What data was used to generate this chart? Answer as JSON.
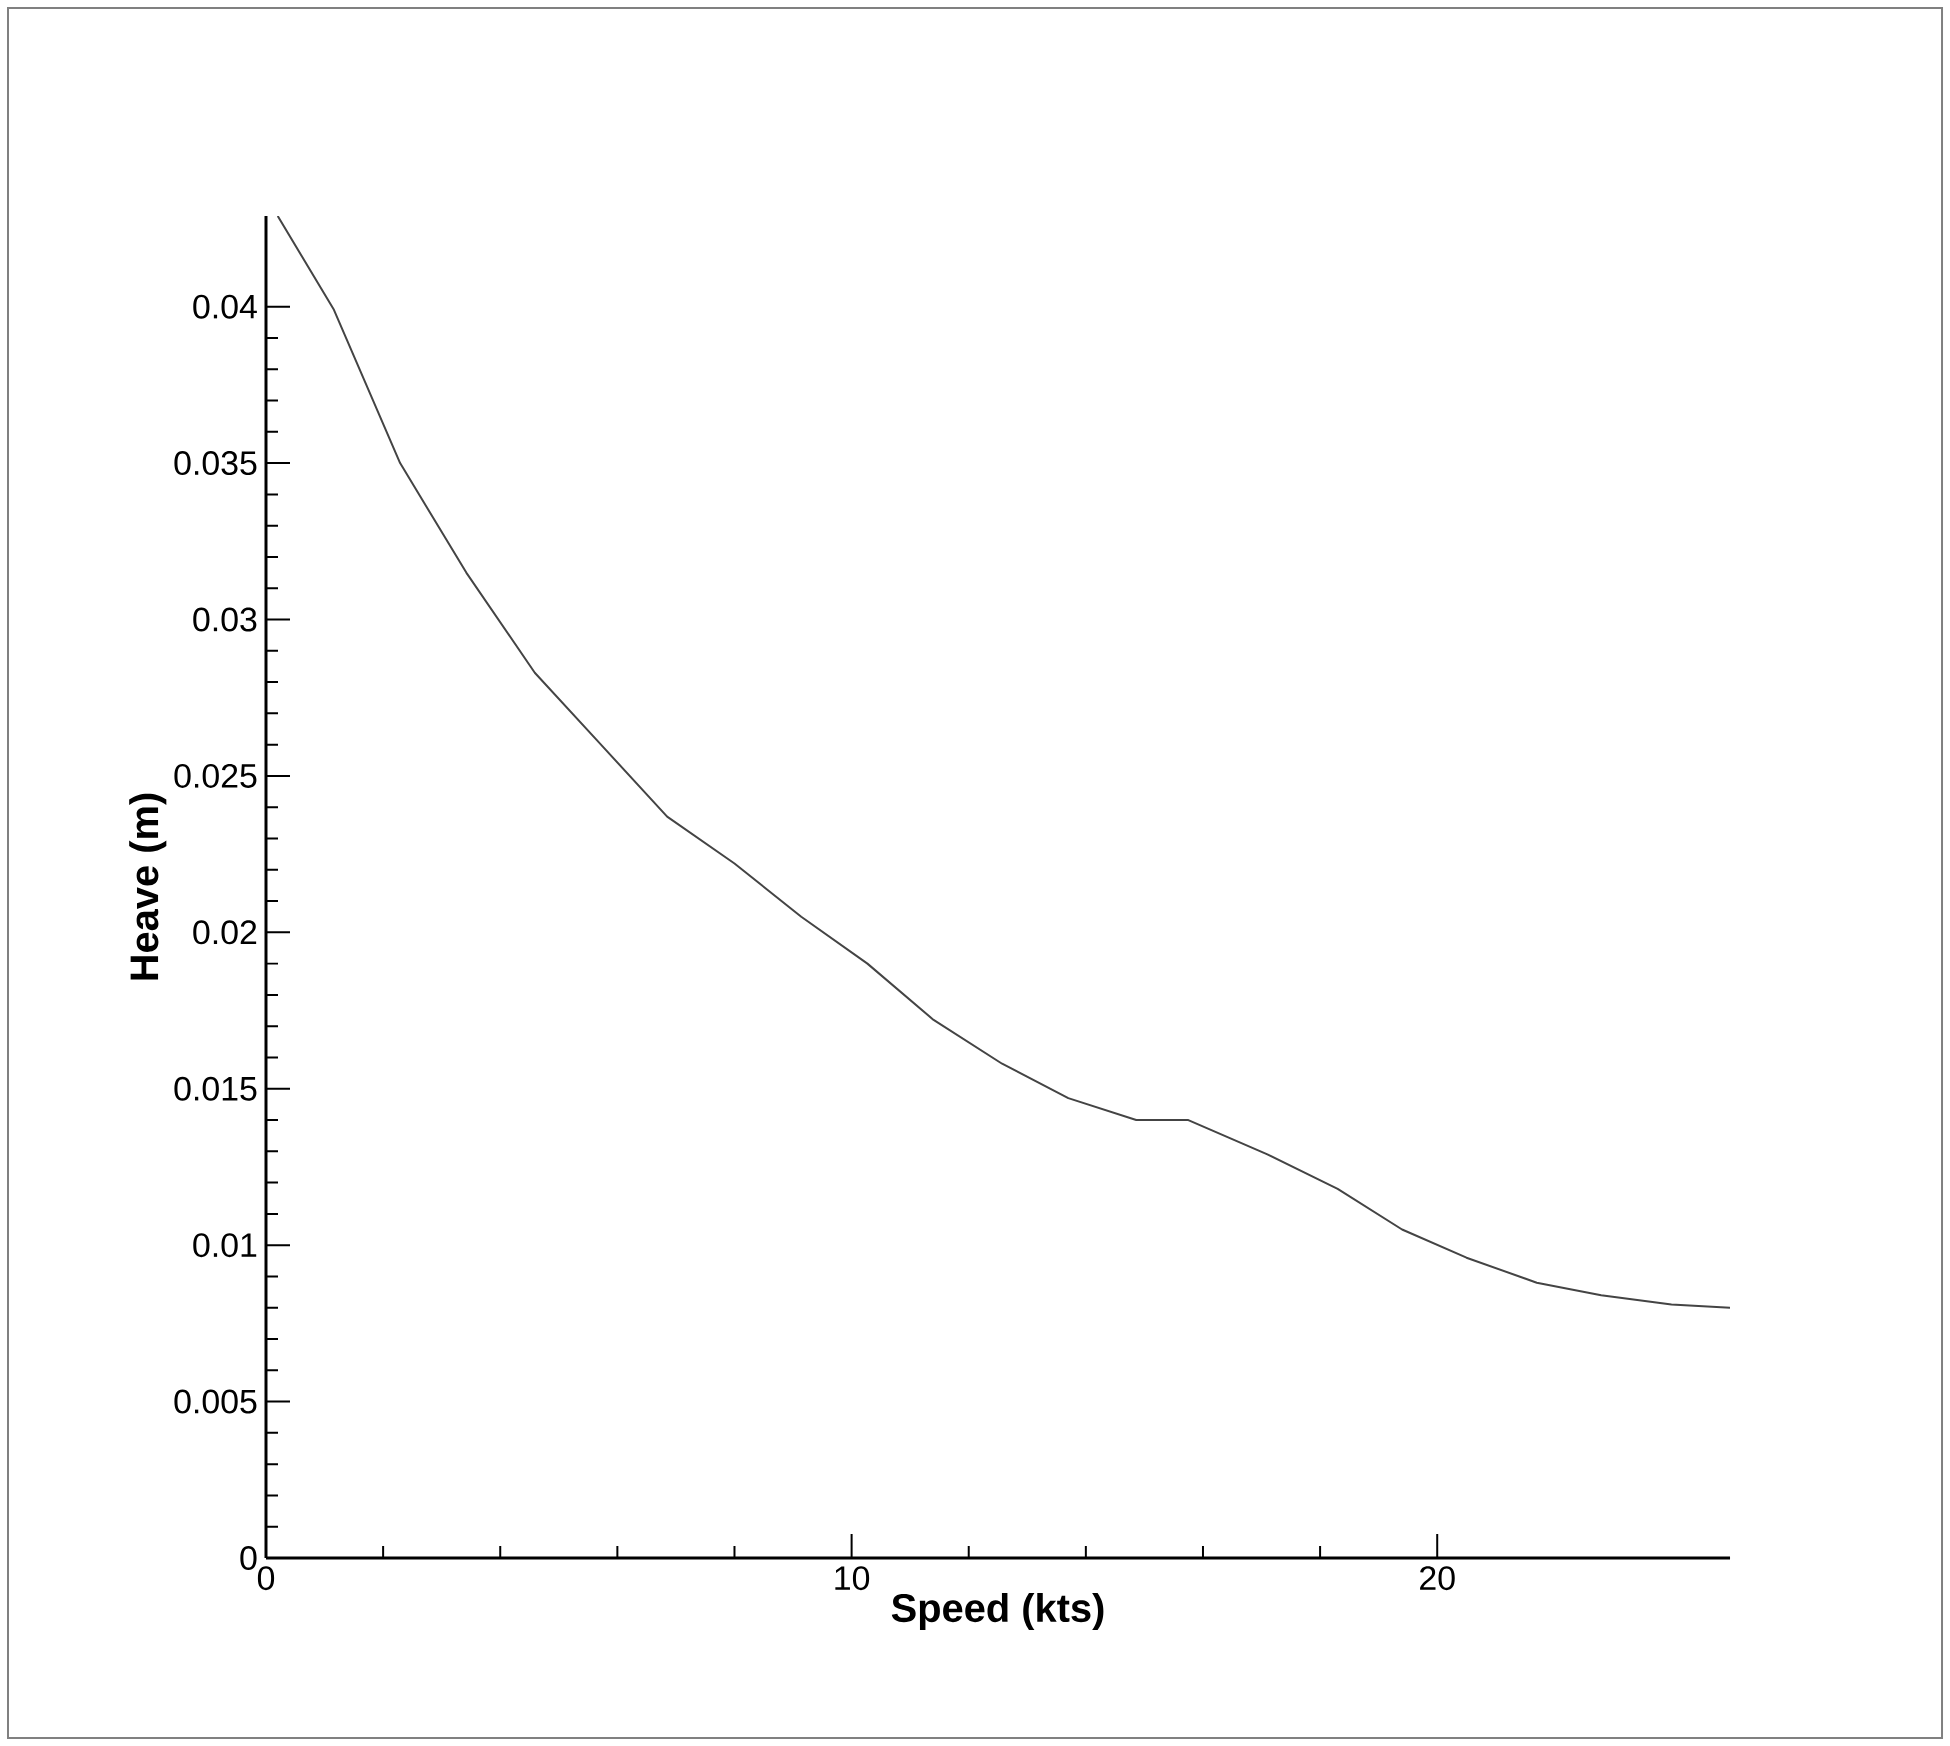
{
  "chart_data": {
    "type": "line",
    "xlabel": "**Speed (kts)**",
    "ylabel": "**Heave (m)**",
    "xlim": [
      0,
      25
    ],
    "ylim": [
      0,
      0.0429
    ],
    "xticks": [
      0,
      10,
      20
    ],
    "yticks": [
      0,
      0.005,
      0.01,
      0.015,
      0.02,
      0.025,
      0.03,
      0.035,
      0.04
    ],
    "grid": false,
    "marker": "none",
    "line_style": "solid",
    "x": [
      0.2,
      1.16,
      2.29,
      3.42,
      4.59,
      5.72,
      6.85,
      8.0,
      9.14,
      10.27,
      11.4,
      12.57,
      13.7,
      14.86,
      15.75,
      17.1,
      18.3,
      19.4,
      20.5,
      21.7,
      22.8,
      24.0,
      25.0
    ],
    "series": [
      {
        "color": "#444444",
        "values": [
          0.0429,
          0.0399,
          0.035,
          0.0315,
          0.0283,
          0.026,
          0.0237,
          0.0222,
          0.0205,
          0.019,
          0.0172,
          0.0158,
          0.0147,
          0.014,
          0.014,
          0.0129,
          0.0118,
          0.0105,
          0.0096,
          0.0088,
          0.0084,
          0.0081,
          0.008
        ]
      }
    ]
  }
}
